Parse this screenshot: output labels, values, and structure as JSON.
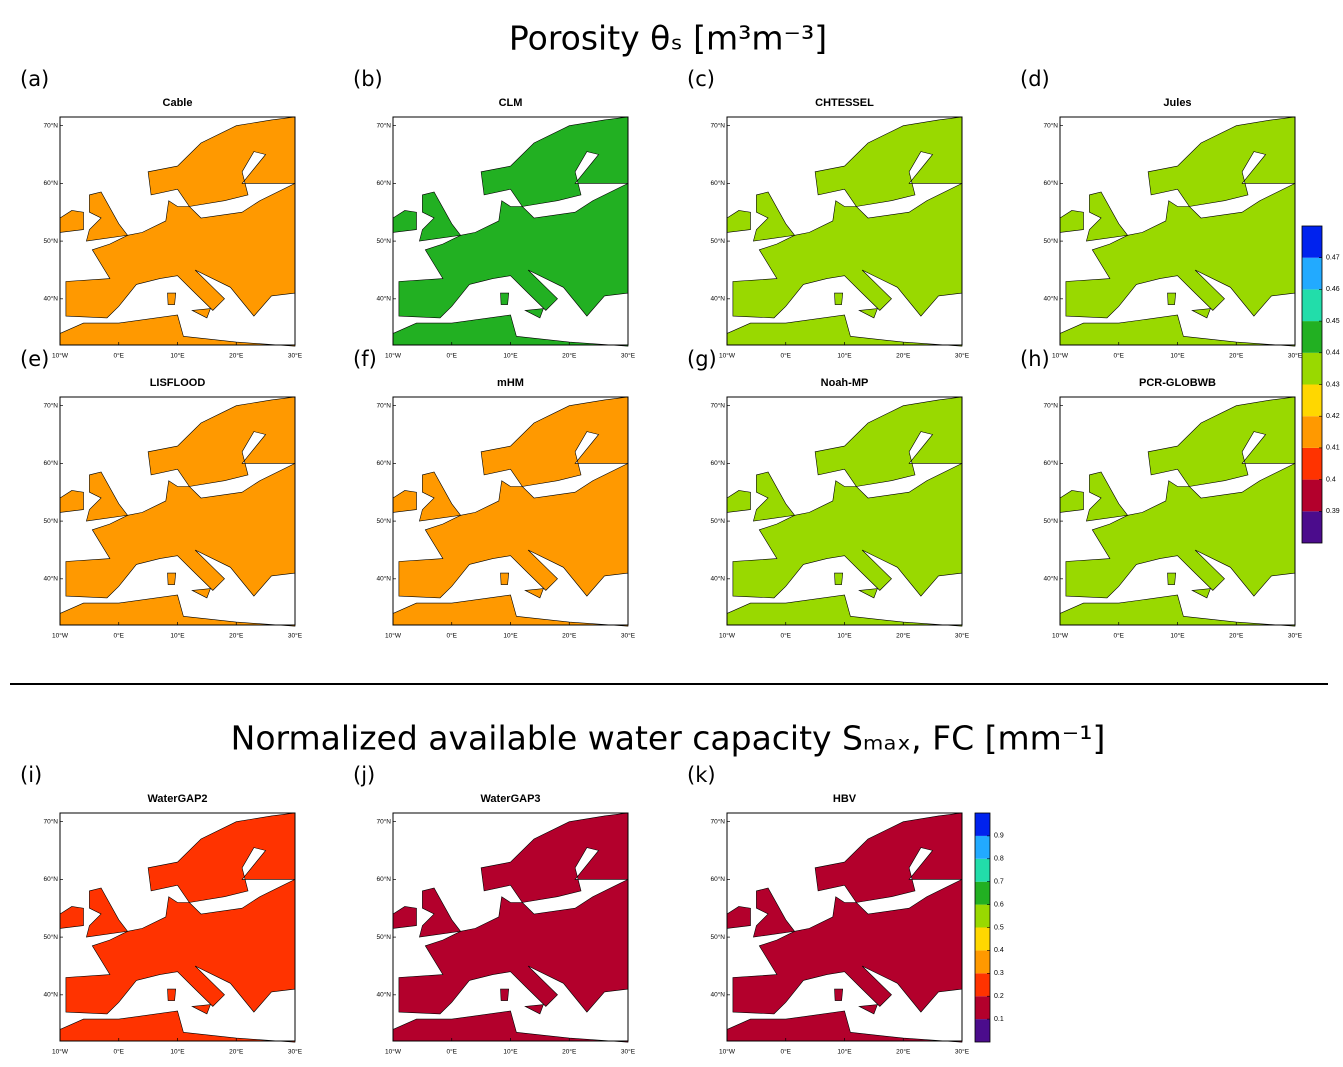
{
  "lat_ticks": [
    "70°N",
    "60°N",
    "50°N",
    "40°N"
  ],
  "lon_ticks": [
    "10°W",
    "0°E",
    "10°E",
    "20°E",
    "30°E"
  ],
  "sections": [
    {
      "title": "Porosity θₛ [m³m⁻³]",
      "panels": [
        {
          "label": "(a)",
          "title": "Cable",
          "color": "#ff9900"
        },
        {
          "label": "(b)",
          "title": "CLM",
          "color": "#22b022"
        },
        {
          "label": "(c)",
          "title": "CHTESSEL",
          "color": "#99d900"
        },
        {
          "label": "(d)",
          "title": "Jules",
          "color": "#99d900"
        },
        {
          "label": "(e)",
          "title": "LISFLOOD",
          "color": "#ff9900"
        },
        {
          "label": "(f)",
          "title": "mHM",
          "color": "#ff9900"
        },
        {
          "label": "(g)",
          "title": "Noah-MP",
          "color": "#99d900"
        },
        {
          "label": "(h)",
          "title": "PCR-GLOBWB",
          "color": "#99d900"
        }
      ],
      "colorbar": {
        "colors": [
          "#4b0c8c",
          "#b3002c",
          "#ff3300",
          "#ff9900",
          "#ffd700",
          "#99d900",
          "#22b022",
          "#22ddaa",
          "#22aaff",
          "#0022ee"
        ],
        "ticks": [
          0.39,
          0.4,
          0.41,
          0.42,
          0.43,
          0.44,
          0.45,
          0.46,
          0.47
        ]
      }
    },
    {
      "title": "Normalized available water capacity Sₘₐₓ, FC [mm⁻¹]",
      "panels": [
        {
          "label": "(i)",
          "title": "WaterGAP2",
          "color": "#ff3300"
        },
        {
          "label": "(j)",
          "title": "WaterGAP3",
          "color": "#b3002c"
        },
        {
          "label": "(k)",
          "title": "HBV",
          "color": "#b3002c"
        }
      ],
      "colorbar": {
        "colors": [
          "#4b0c8c",
          "#b3002c",
          "#ff3300",
          "#ff9900",
          "#ffd700",
          "#99d900",
          "#22b022",
          "#22ddaa",
          "#22aaff",
          "#0022ee"
        ],
        "ticks": [
          0.1,
          0.2,
          0.3,
          0.4,
          0.5,
          0.6,
          0.7,
          0.8,
          0.9
        ]
      }
    }
  ]
}
